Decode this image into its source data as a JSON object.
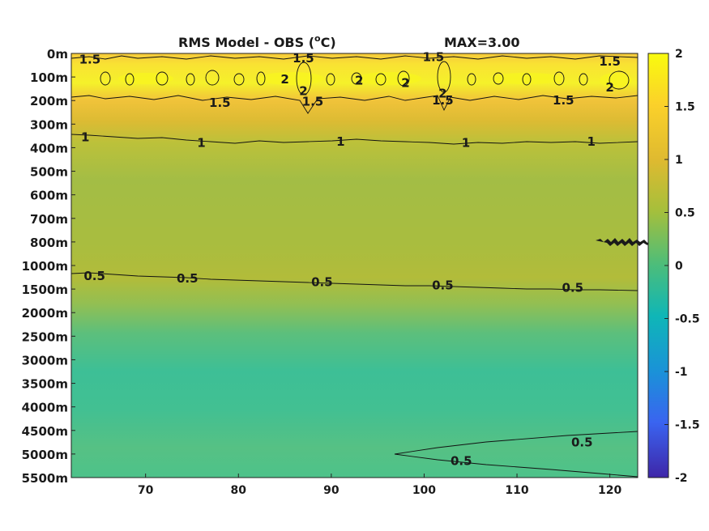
{
  "title": {
    "main": "RMS Model - OBS (",
    "sup": "o",
    "unit": "C)",
    "max_label": "MAX=3.00"
  },
  "chart_data": {
    "type": "heatmap",
    "title": "RMS Model - OBS (oC)",
    "annotation": "MAX=3.00",
    "x_ticks": [
      70,
      80,
      90,
      100,
      110,
      120
    ],
    "xlim": [
      62,
      123
    ],
    "y_ticks": [
      "0m",
      "100m",
      "200m",
      "300m",
      "400m",
      "500m",
      "600m",
      "700m",
      "800m",
      "1000m",
      "1500m",
      "2000m",
      "2500m",
      "3000m",
      "3500m",
      "4000m",
      "4500m",
      "5000m",
      "5500m"
    ],
    "colorbar": {
      "ticks": [
        "2",
        "1.5",
        "1",
        "0.5",
        "0",
        "-0.5",
        "-1",
        "-1.5",
        "-2"
      ],
      "range": [
        -2,
        2
      ],
      "colormap": "parula"
    },
    "depth_profile_rms": [
      {
        "depth": "0m",
        "value": 1.65
      },
      {
        "depth": "100m",
        "value": 1.95
      },
      {
        "depth": "200m",
        "value": 1.5
      },
      {
        "depth": "300m",
        "value": 1.2
      },
      {
        "depth": "400m",
        "value": 0.95
      },
      {
        "depth": "500m",
        "value": 0.85
      },
      {
        "depth": "600m",
        "value": 0.8
      },
      {
        "depth": "700m",
        "value": 0.8
      },
      {
        "depth": "800m",
        "value": 0.85
      },
      {
        "depth": "1000m",
        "value": 0.7
      },
      {
        "depth": "1500m",
        "value": 0.45
      },
      {
        "depth": "2000m",
        "value": 0.35
      },
      {
        "depth": "2500m",
        "value": 0.3
      },
      {
        "depth": "3000m",
        "value": 0.3
      },
      {
        "depth": "3500m",
        "value": 0.32
      },
      {
        "depth": "4000m",
        "value": 0.36
      },
      {
        "depth": "4500m",
        "value": 0.42
      },
      {
        "depth": "5000m",
        "value": 0.48
      },
      {
        "depth": "5500m",
        "value": 0.4
      }
    ],
    "contours": [
      {
        "level": "1.5",
        "labels": [
          [
            64,
            0.25
          ],
          [
            78,
            2.1
          ],
          [
            87,
            0.2
          ],
          [
            88,
            2.05
          ],
          [
            101,
            0.15
          ],
          [
            102,
            2.0
          ],
          [
            115,
            2.0
          ],
          [
            120,
            0.35
          ]
        ]
      },
      {
        "level": "2",
        "labels": [
          [
            85,
            1.1
          ],
          [
            87,
            1.6
          ],
          [
            93,
            1.15
          ],
          [
            98,
            1.25
          ],
          [
            102,
            1.7
          ],
          [
            120,
            1.45
          ]
        ]
      },
      {
        "level": "1",
        "labels": [
          [
            63.5,
            3.55
          ],
          [
            76,
            3.8
          ],
          [
            91,
            3.75
          ],
          [
            104.5,
            3.8
          ],
          [
            118,
            3.75
          ]
        ]
      },
      {
        "level": "0.5",
        "labels": [
          [
            64.5,
            9.45
          ],
          [
            74.5,
            9.55
          ],
          [
            89,
            9.7
          ],
          [
            102,
            9.85
          ],
          [
            116,
            9.95
          ],
          [
            117,
            16.5
          ],
          [
            104,
            17.3
          ]
        ]
      }
    ]
  }
}
